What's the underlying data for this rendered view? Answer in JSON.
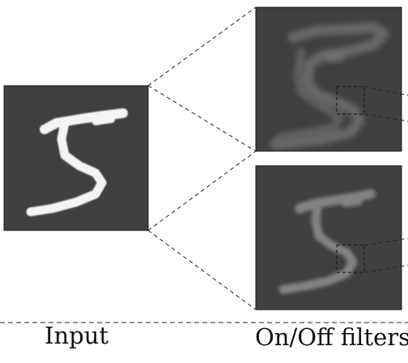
{
  "captions": {
    "input": "Input",
    "filters": "On/Off filters"
  },
  "colors": {
    "panel_background": "#404040",
    "input_digit": "#f4f4f4",
    "on_filter_response": "#707070",
    "off_filter_response": "#8a8a8a",
    "dashed_lines": "#222222"
  },
  "panels": [
    {
      "role": "input-image",
      "content": "handwritten digit 5 (sharp)"
    },
    {
      "role": "on-filter-output",
      "content": "outline of digit 5 (blurred)"
    },
    {
      "role": "off-filter-output",
      "content": "digit 5 (blurred)"
    }
  ]
}
